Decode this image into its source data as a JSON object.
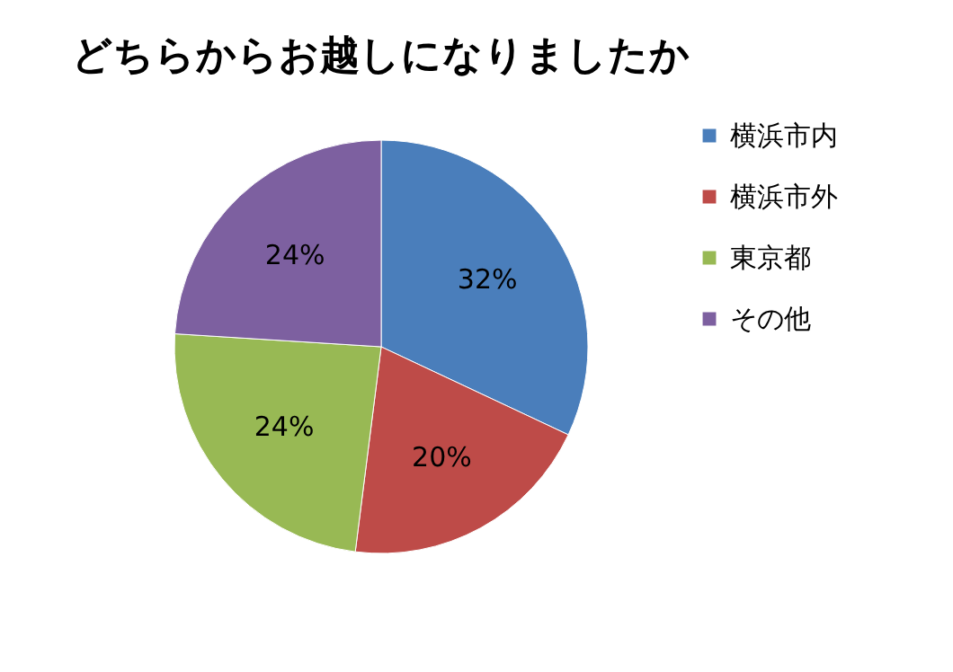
{
  "chart_data": {
    "type": "pie",
    "title": "どちらからお越しになりましたか",
    "categories": [
      "横浜市内",
      "横浜市外",
      "東京都",
      "その他"
    ],
    "values": [
      32,
      20,
      24,
      24
    ],
    "colors": [
      "#4a7ebb",
      "#be4b48",
      "#98b954",
      "#7d60a0"
    ],
    "value_labels": [
      "32%",
      "20%",
      "24%",
      "24%"
    ],
    "legend": "right"
  }
}
